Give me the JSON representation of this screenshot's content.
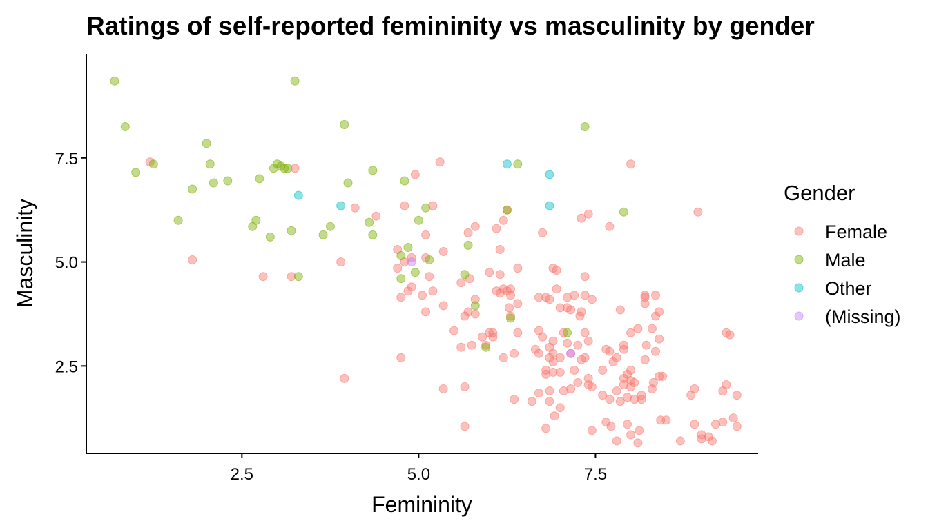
{
  "chart_data": {
    "type": "scatter",
    "title": "Ratings of self-reported femininity vs masculinity by gender",
    "xlabel": "Femininity",
    "ylabel": "Masculinity",
    "xlim": [
      0.3,
      9.8
    ],
    "ylim": [
      0.4,
      10.0
    ],
    "xticks": [
      {
        "value": 2.5,
        "label": "2.5"
      },
      {
        "value": 5.0,
        "label": "5.0"
      },
      {
        "value": 7.5,
        "label": "7.5"
      }
    ],
    "yticks": [
      {
        "value": 2.5,
        "label": "2.5"
      },
      {
        "value": 5.0,
        "label": "5.0"
      },
      {
        "value": 7.5,
        "label": "7.5"
      }
    ],
    "grid": false,
    "legend": {
      "title": "Gender",
      "placement": "right"
    },
    "series": [
      {
        "name": "Female",
        "color": "#F8766D",
        "points": [
          [
            1.2,
            7.4
          ],
          [
            1.8,
            5.05
          ],
          [
            2.8,
            4.65
          ],
          [
            3.2,
            4.65
          ],
          [
            3.25,
            7.25
          ],
          [
            3.9,
            5.0
          ],
          [
            3.95,
            2.2
          ],
          [
            4.1,
            6.3
          ],
          [
            4.4,
            6.1
          ],
          [
            4.7,
            5.3
          ],
          [
            4.7,
            4.85
          ],
          [
            4.75,
            4.15
          ],
          [
            4.75,
            2.7
          ],
          [
            4.8,
            6.35
          ],
          [
            4.8,
            5.0
          ],
          [
            4.85,
            4.3
          ],
          [
            4.9,
            4.4
          ],
          [
            4.9,
            5.1
          ],
          [
            4.95,
            7.1
          ],
          [
            5.05,
            4.2
          ],
          [
            5.1,
            3.8
          ],
          [
            5.1,
            5.1
          ],
          [
            5.1,
            5.65
          ],
          [
            5.15,
            4.65
          ],
          [
            5.2,
            6.35
          ],
          [
            5.2,
            4.3
          ],
          [
            5.3,
            7.4
          ],
          [
            5.35,
            5.25
          ],
          [
            5.35,
            3.95
          ],
          [
            5.35,
            1.95
          ],
          [
            5.5,
            3.35
          ],
          [
            5.6,
            2.95
          ],
          [
            5.6,
            4.5
          ],
          [
            5.65,
            2.0
          ],
          [
            5.65,
            1.05
          ],
          [
            5.65,
            3.7
          ],
          [
            5.7,
            3.8
          ],
          [
            5.7,
            5.7
          ],
          [
            5.72,
            4.6
          ],
          [
            5.75,
            3.0
          ],
          [
            5.8,
            5.85
          ],
          [
            5.8,
            4.1
          ],
          [
            5.8,
            3.75
          ],
          [
            5.9,
            3.2
          ],
          [
            5.95,
            3.0
          ],
          [
            6.0,
            4.75
          ],
          [
            6.0,
            3.3
          ],
          [
            6.05,
            3.3
          ],
          [
            6.05,
            3.2
          ],
          [
            6.1,
            4.3
          ],
          [
            6.1,
            5.8
          ],
          [
            6.15,
            5.3
          ],
          [
            6.15,
            4.7
          ],
          [
            6.15,
            4.25
          ],
          [
            6.2,
            6.0
          ],
          [
            6.2,
            4.35
          ],
          [
            6.2,
            2.7
          ],
          [
            6.25,
            6.25
          ],
          [
            6.25,
            4.3
          ],
          [
            6.28,
            3.9
          ],
          [
            6.3,
            4.2
          ],
          [
            6.3,
            4.35
          ],
          [
            6.3,
            3.7
          ],
          [
            6.35,
            2.8
          ],
          [
            6.35,
            1.7
          ],
          [
            6.4,
            4.85
          ],
          [
            6.4,
            4.0
          ],
          [
            6.4,
            3.3
          ],
          [
            6.6,
            1.65
          ],
          [
            6.65,
            2.9
          ],
          [
            6.7,
            2.8
          ],
          [
            6.7,
            4.15
          ],
          [
            6.7,
            3.35
          ],
          [
            6.7,
            1.85
          ],
          [
            6.75,
            5.7
          ],
          [
            6.75,
            3.2
          ],
          [
            6.8,
            4.15
          ],
          [
            6.8,
            2.4
          ],
          [
            6.8,
            2.3
          ],
          [
            6.8,
            1.0
          ],
          [
            6.85,
            2.95
          ],
          [
            6.85,
            2.7
          ],
          [
            6.85,
            1.9
          ],
          [
            6.85,
            1.65
          ],
          [
            6.85,
            4.1
          ],
          [
            6.9,
            4.85
          ],
          [
            6.9,
            3.1
          ],
          [
            6.9,
            2.6
          ],
          [
            6.9,
            2.8
          ],
          [
            6.9,
            2.35
          ],
          [
            6.92,
            1.3
          ],
          [
            6.95,
            4.8
          ],
          [
            6.95,
            4.35
          ],
          [
            7.0,
            3.9
          ],
          [
            7.0,
            2.7
          ],
          [
            7.0,
            2.35
          ],
          [
            7.0,
            1.5
          ],
          [
            7.05,
            3.3
          ],
          [
            7.05,
            1.9
          ],
          [
            7.1,
            4.15
          ],
          [
            7.1,
            3.9
          ],
          [
            7.1,
            3.05
          ],
          [
            7.15,
            3.85
          ],
          [
            7.15,
            1.95
          ],
          [
            7.15,
            2.8
          ],
          [
            7.2,
            4.2
          ],
          [
            7.2,
            2.4
          ],
          [
            7.25,
            3.0
          ],
          [
            7.25,
            2.1
          ],
          [
            7.28,
            3.7
          ],
          [
            7.3,
            6.05
          ],
          [
            7.3,
            3.8
          ],
          [
            7.3,
            2.65
          ],
          [
            7.35,
            4.65
          ],
          [
            7.35,
            4.2
          ],
          [
            7.35,
            3.3
          ],
          [
            7.35,
            2.7
          ],
          [
            7.4,
            6.15
          ],
          [
            7.4,
            3.1
          ],
          [
            7.4,
            2.2
          ],
          [
            7.4,
            2.05
          ],
          [
            7.45,
            4.1
          ],
          [
            7.45,
            2.0
          ],
          [
            7.45,
            0.95
          ],
          [
            7.6,
            2.4
          ],
          [
            7.6,
            1.8
          ],
          [
            7.65,
            2.9
          ],
          [
            7.65,
            1.15
          ],
          [
            7.7,
            5.85
          ],
          [
            7.7,
            2.85
          ],
          [
            7.7,
            1.7
          ],
          [
            7.72,
            1.05
          ],
          [
            7.75,
            2.6
          ],
          [
            7.8,
            2.7
          ],
          [
            7.8,
            1.9
          ],
          [
            7.8,
            0.7
          ],
          [
            7.85,
            1.65
          ],
          [
            7.85,
            3.85
          ],
          [
            7.9,
            2.2
          ],
          [
            7.9,
            2.05
          ],
          [
            7.9,
            3.0
          ],
          [
            7.9,
            2.9
          ],
          [
            7.95,
            2.3
          ],
          [
            7.95,
            1.75
          ],
          [
            7.95,
            1.1
          ],
          [
            8.0,
            7.35
          ],
          [
            8.0,
            2.4
          ],
          [
            8.0,
            2.15
          ],
          [
            8.0,
            2.0
          ],
          [
            8.0,
            3.3
          ],
          [
            8.0,
            0.85
          ],
          [
            8.05,
            2.1
          ],
          [
            8.05,
            1.7
          ],
          [
            8.1,
            3.4
          ],
          [
            8.1,
            0.65
          ],
          [
            8.12,
            0.95
          ],
          [
            8.15,
            1.8
          ],
          [
            8.15,
            1.7
          ],
          [
            8.2,
            4.2
          ],
          [
            8.2,
            4.15
          ],
          [
            8.2,
            4.0
          ],
          [
            8.2,
            2.65
          ],
          [
            8.22,
            3.0
          ],
          [
            8.3,
            1.95
          ],
          [
            8.3,
            3.4
          ],
          [
            8.32,
            2.1
          ],
          [
            8.35,
            4.2
          ],
          [
            8.35,
            3.7
          ],
          [
            8.35,
            2.85
          ],
          [
            8.4,
            3.8
          ],
          [
            8.4,
            3.15
          ],
          [
            8.4,
            2.25
          ],
          [
            8.45,
            2.25
          ],
          [
            8.42,
            1.2
          ],
          [
            8.5,
            1.2
          ],
          [
            8.7,
            0.7
          ],
          [
            8.85,
            1.8
          ],
          [
            8.9,
            1.95
          ],
          [
            8.9,
            1.1
          ],
          [
            8.95,
            6.2
          ],
          [
            9.0,
            0.85
          ],
          [
            9.0,
            0.75
          ],
          [
            9.1,
            0.8
          ],
          [
            9.15,
            0.7
          ],
          [
            9.2,
            1.1
          ],
          [
            9.3,
            1.9
          ],
          [
            9.3,
            1.15
          ],
          [
            9.35,
            2.05
          ],
          [
            9.35,
            3.3
          ],
          [
            9.4,
            3.25
          ],
          [
            9.45,
            1.25
          ],
          [
            9.5,
            1.05
          ],
          [
            9.5,
            1.8
          ]
        ]
      },
      {
        "name": "Male",
        "color": "#7CAE00",
        "points": [
          [
            0.7,
            9.35
          ],
          [
            0.85,
            8.25
          ],
          [
            1.0,
            7.15
          ],
          [
            1.25,
            7.35
          ],
          [
            1.6,
            6.0
          ],
          [
            1.8,
            6.75
          ],
          [
            2.0,
            7.85
          ],
          [
            2.05,
            7.35
          ],
          [
            2.1,
            6.9
          ],
          [
            2.3,
            6.95
          ],
          [
            2.65,
            5.85
          ],
          [
            2.7,
            6.0
          ],
          [
            2.75,
            7.0
          ],
          [
            2.9,
            5.6
          ],
          [
            2.95,
            7.25
          ],
          [
            3.0,
            7.35
          ],
          [
            3.05,
            7.3
          ],
          [
            3.1,
            7.25
          ],
          [
            3.15,
            7.25
          ],
          [
            3.2,
            5.75
          ],
          [
            3.25,
            9.35
          ],
          [
            3.3,
            4.65
          ],
          [
            3.65,
            5.65
          ],
          [
            3.75,
            5.85
          ],
          [
            3.95,
            8.3
          ],
          [
            4.0,
            6.9
          ],
          [
            4.3,
            5.95
          ],
          [
            4.35,
            7.2
          ],
          [
            4.35,
            5.65
          ],
          [
            4.75,
            5.15
          ],
          [
            4.75,
            4.6
          ],
          [
            4.8,
            6.95
          ],
          [
            4.85,
            5.35
          ],
          [
            4.95,
            4.75
          ],
          [
            5.0,
            6.0
          ],
          [
            5.1,
            6.3
          ],
          [
            5.15,
            5.05
          ],
          [
            5.65,
            4.7
          ],
          [
            5.7,
            5.4
          ],
          [
            5.8,
            3.95
          ],
          [
            5.95,
            2.95
          ],
          [
            6.25,
            6.25
          ],
          [
            6.3,
            3.65
          ],
          [
            6.4,
            7.35
          ],
          [
            7.1,
            3.3
          ],
          [
            7.35,
            8.25
          ],
          [
            7.9,
            6.2
          ]
        ]
      },
      {
        "name": "Other",
        "color": "#00BFC4",
        "points": [
          [
            3.3,
            6.6
          ],
          [
            3.9,
            6.35
          ],
          [
            6.25,
            7.35
          ],
          [
            6.85,
            7.1
          ],
          [
            6.85,
            6.35
          ]
        ]
      },
      {
        "name": "(Missing)",
        "color": "#C77CFF",
        "points": [
          [
            4.9,
            5.0
          ],
          [
            7.15,
            2.8
          ]
        ]
      }
    ]
  }
}
